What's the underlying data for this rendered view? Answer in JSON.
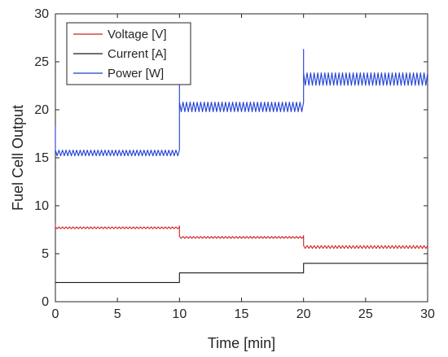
{
  "chart_data": {
    "type": "line",
    "title": "",
    "xlabel": "Time [min]",
    "ylabel": "Fuel Cell Output",
    "xlim": [
      0,
      30
    ],
    "ylim": [
      0,
      30
    ],
    "xticks": [
      0,
      5,
      10,
      15,
      20,
      25,
      30
    ],
    "yticks": [
      0,
      5,
      10,
      15,
      20,
      25,
      30
    ],
    "grid": false,
    "legend_position": "top-left",
    "series": [
      {
        "name": "Voltage [V]",
        "color": "#cc2222",
        "segments": [
          {
            "x_start": 0,
            "x_end": 10,
            "y": 7.7,
            "ripple": 0.2
          },
          {
            "x_start": 10,
            "x_end": 20,
            "y": 6.7,
            "ripple": 0.2
          },
          {
            "x_start": 20,
            "x_end": 30,
            "y": 5.7,
            "ripple": 0.3
          }
        ],
        "spikes": [
          {
            "x": 0,
            "y": 8.2
          },
          {
            "x": 10,
            "y": 7.9
          },
          {
            "x": 20,
            "y": 6.9
          }
        ]
      },
      {
        "name": "Current [A]",
        "color": "#1a1a1a",
        "segments": [
          {
            "x_start": 0,
            "x_end": 10,
            "y": 2.0,
            "ripple": 0
          },
          {
            "x_start": 10,
            "x_end": 20,
            "y": 3.0,
            "ripple": 0
          },
          {
            "x_start": 20,
            "x_end": 30,
            "y": 4.0,
            "ripple": 0
          }
        ],
        "spikes": []
      },
      {
        "name": "Power [W]",
        "color": "#1f3fd6",
        "segments": [
          {
            "x_start": 0,
            "x_end": 10,
            "y": 15.5,
            "ripple": 0.6
          },
          {
            "x_start": 10,
            "x_end": 20,
            "y": 20.3,
            "ripple": 1.0
          },
          {
            "x_start": 20,
            "x_end": 30,
            "y": 23.2,
            "ripple": 1.3
          }
        ],
        "spikes": [
          {
            "x": 0,
            "y": 18.3
          },
          {
            "x": 10,
            "y": 23.0
          },
          {
            "x": 20,
            "y": 26.3
          }
        ]
      }
    ]
  }
}
